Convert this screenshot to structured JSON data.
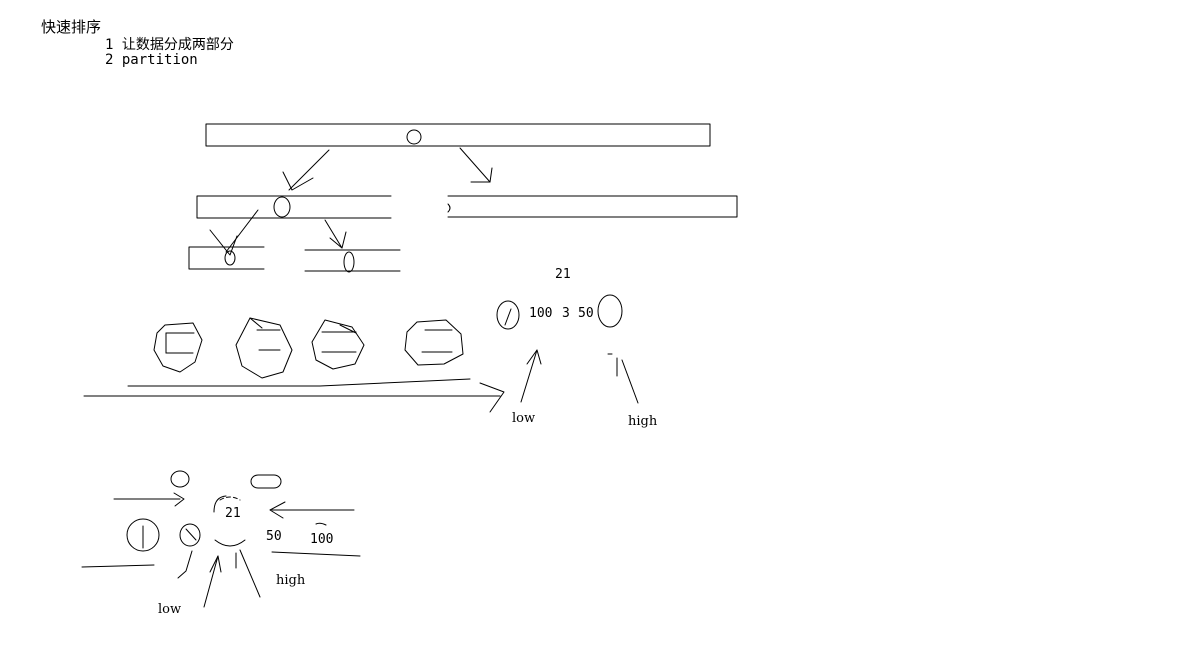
{
  "heading": "快速排序",
  "steps": [
    {
      "num": "1",
      "text": "让数据分成两部分"
    },
    {
      "num": "2",
      "text": "partition"
    }
  ],
  "example1": {
    "top_value": "21",
    "row_values": [
      "100",
      "3",
      "50"
    ],
    "low_label": "low",
    "high_label": "high"
  },
  "example2": {
    "center_value": "21",
    "right_values": [
      "50",
      "100"
    ],
    "low_label": "low",
    "high_label": "high"
  },
  "colors": {
    "ink": "#000000",
    "background": "#ffffff"
  }
}
